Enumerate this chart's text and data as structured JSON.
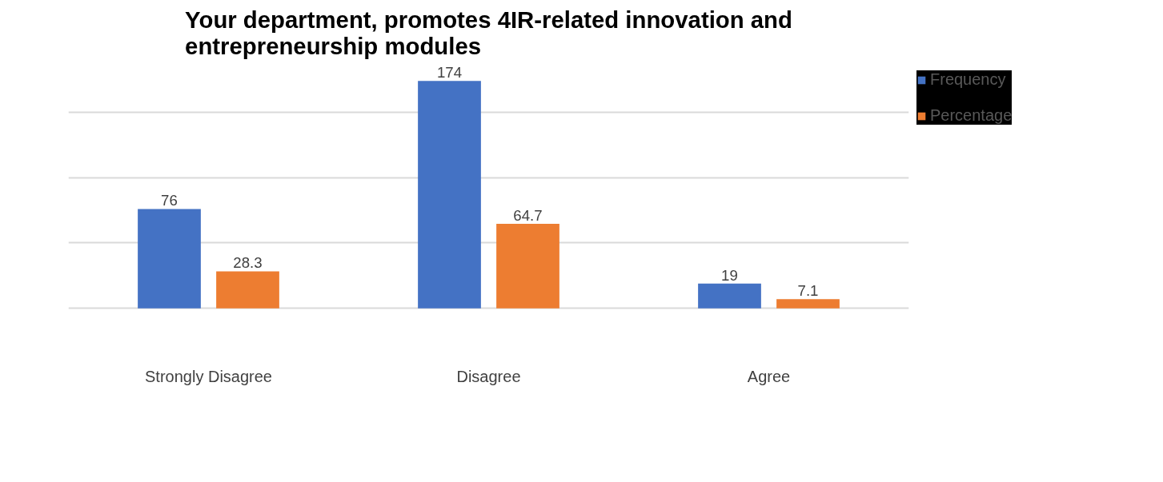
{
  "chart_data": {
    "type": "bar",
    "title": "Your department, promotes 4IR-related innovation and entrepreneurship modules",
    "categories": [
      "Strongly Disagree",
      "Disagree",
      "Agree"
    ],
    "series": [
      {
        "name": "Frequency",
        "color": "#4472c4",
        "values": [
          76,
          174,
          19
        ]
      },
      {
        "name": "Percentage",
        "color": "#ed7d31",
        "values": [
          28.3,
          64.7,
          7.1
        ]
      }
    ],
    "tick_labels": "x",
    "grid": "y",
    "data_labels": true,
    "legend": "right"
  }
}
